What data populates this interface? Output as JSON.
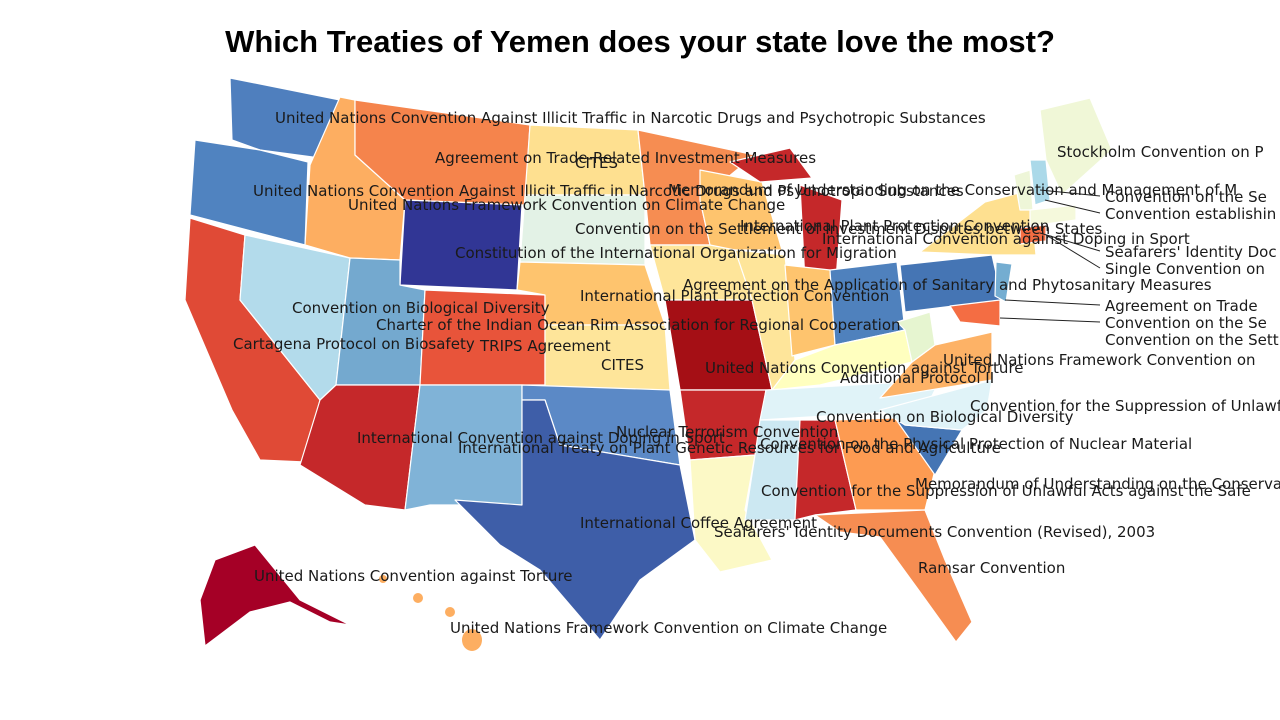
{
  "title": "Which Treaties of Yemen does your state love the most?",
  "labels": [
    {
      "text": "United Nations Convention Against Illicit Traffic in Narcotic Drugs and Psychotropic Substances"
    },
    {
      "text": "Agreement on Trade-Related Investment Measures"
    },
    {
      "text": "CITES"
    },
    {
      "text": "United Nations Convention Against Illicit Traffic in Narcotic Drugs and Psychotropic Substances"
    },
    {
      "text": "Memorandum of Understanding on the Conservation and Management of M"
    },
    {
      "text": "United Nations Framework Convention on Climate Change"
    },
    {
      "text": "Convention on the Settlement of Investment Disputes between States"
    },
    {
      "text": "International Plant Protection Convention"
    },
    {
      "text": "International Convention against Doping in Sport"
    },
    {
      "text": "Constitution of the International Organization for Migration"
    },
    {
      "text": "Agreement on the Application of Sanitary and Phytosanitary Measures"
    },
    {
      "text": "International Plant Protection Convention"
    },
    {
      "text": "Convention on Biological Diversity"
    },
    {
      "text": "Charter of the Indian Ocean Rim Association for Regional Cooperation"
    },
    {
      "text": "Cartagena Protocol on Biosafety"
    },
    {
      "text": "TRIPS Agreement"
    },
    {
      "text": "CITES"
    },
    {
      "text": "United Nations Convention against Torture"
    },
    {
      "text": "Additional Protocol II"
    },
    {
      "text": "Convention on Biological Diversity"
    },
    {
      "text": "Nuclear Terrorism Convention"
    },
    {
      "text": "International Convention against Doping in Sport"
    },
    {
      "text": "International Treaty on Plant Genetic Resources for Food and Agriculture"
    },
    {
      "text": "Convention on the Physical Protection of Nuclear Material"
    },
    {
      "text": "Convention for the Suppression of Unlawful Acts against the Safe"
    },
    {
      "text": "Memorandum of Understanding on the Conservat"
    },
    {
      "text": "International Coffee Agreement"
    },
    {
      "text": "Seafarers' Identity Documents Convention (Revised), 2003"
    },
    {
      "text": "United Nations Convention against Torture"
    },
    {
      "text": "Ramsar Convention"
    },
    {
      "text": "United Nations Framework Convention on Climate Change"
    },
    {
      "text": "Stockholm Convention on P"
    },
    {
      "text": "Convention on the Se"
    },
    {
      "text": "Convention establishin"
    },
    {
      "text": "Seafarers' Identity Doc"
    },
    {
      "text": "Single Convention on"
    },
    {
      "text": "Agreement on Trade"
    },
    {
      "text": "Convention on the Se"
    },
    {
      "text": "Convention on the Settle"
    },
    {
      "text": "United Nations Framework Convention on"
    },
    {
      "text": "Convention for the Suppression of Unlawfu"
    }
  ]
}
